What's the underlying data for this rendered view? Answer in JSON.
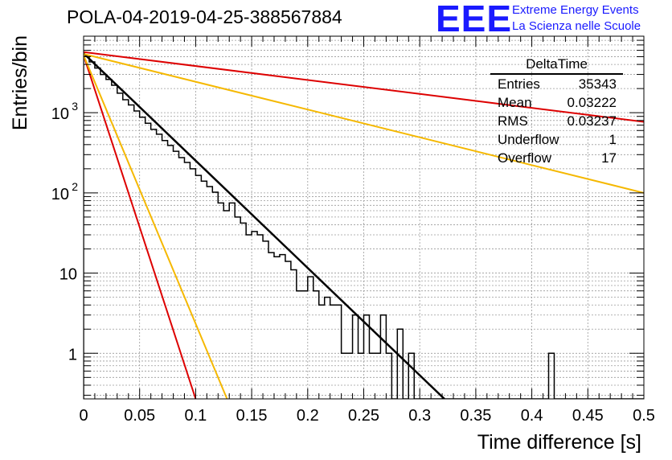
{
  "header": {
    "title": "POLA-04-2019-04-25-388567884",
    "logo_text": "EEE",
    "logo_line1": "Extreme Energy Events",
    "logo_line2": "La Scienza nelle Scuole",
    "logo_color": "#1a1aff"
  },
  "stats": {
    "name": "DeltaTime",
    "rows": [
      {
        "label": "Entries",
        "value": "35343"
      },
      {
        "label": "Mean",
        "value": "0.03222"
      },
      {
        "label": "RMS",
        "value": "0.03237"
      },
      {
        "label": "Underflow",
        "value": "1"
      },
      {
        "label": "Overflow",
        "value": "17"
      }
    ]
  },
  "chart_data": {
    "type": "line",
    "title": "POLA-04-2019-04-25-388567884",
    "xlabel": "Time difference [s]",
    "ylabel": "Entries/bin",
    "xlim": [
      0,
      0.5
    ],
    "ylim": [
      0.27,
      9000
    ],
    "yscale": "log",
    "grid": true,
    "xticks": [
      "0",
      "0.05",
      "0.1",
      "0.15",
      "0.2",
      "0.25",
      "0.3",
      "0.35",
      "0.4",
      "0.45",
      "0.5"
    ],
    "yticks": [
      {
        "value": 1,
        "label": "1"
      },
      {
        "value": 10,
        "label": "10"
      },
      {
        "value": 100,
        "label": "10",
        "exp": "2"
      },
      {
        "value": 1000,
        "label": "10",
        "exp": "3"
      }
    ],
    "histogram": {
      "bin_width": 0.005,
      "color": "#000000",
      "counts": [
        5200,
        4300,
        3600,
        3000,
        2600,
        2200,
        1750,
        1450,
        1250,
        1050,
        880,
        740,
        620,
        540,
        450,
        390,
        330,
        275,
        240,
        200,
        165,
        140,
        120,
        102,
        75,
        60,
        75,
        50,
        42,
        30,
        33,
        30,
        25,
        18,
        16,
        17,
        14,
        11,
        6,
        6,
        9,
        6,
        4,
        5,
        4,
        4,
        1,
        1,
        3,
        1,
        3,
        1,
        1,
        3,
        1,
        0.27,
        2,
        0.27,
        1,
        0.27,
        0.27,
        0.27,
        0.27,
        0.27,
        0.27,
        0.27,
        0.27,
        0.27,
        0.27,
        0.27,
        0.27,
        0.27,
        0.27,
        0.27,
        0.27,
        0.27,
        0.27,
        0.27,
        0.27,
        0.27,
        0.27,
        0.27,
        0.27,
        1,
        0.27,
        0.27,
        0.27,
        0.27,
        0.27,
        0.27,
        0.27,
        0.27,
        0.27,
        0.27,
        0.27,
        0.27,
        0.27,
        0.27,
        0.27,
        0.27
      ]
    },
    "fits": [
      {
        "color": "#000000",
        "x": [
          0,
          0.322
        ],
        "y": [
          5500,
          0.27
        ]
      },
      {
        "color": "#dd0000",
        "x": [
          0,
          0.1
        ],
        "y": [
          5200,
          0.27
        ]
      },
      {
        "color": "#f5b800",
        "x": [
          0,
          0.128
        ],
        "y": [
          5200,
          0.27
        ]
      },
      {
        "color": "#dd0000",
        "x": [
          0,
          0.5
        ],
        "y": [
          5700,
          770
        ]
      },
      {
        "color": "#f5b800",
        "x": [
          0,
          0.5
        ],
        "y": [
          5400,
          100
        ]
      }
    ]
  }
}
